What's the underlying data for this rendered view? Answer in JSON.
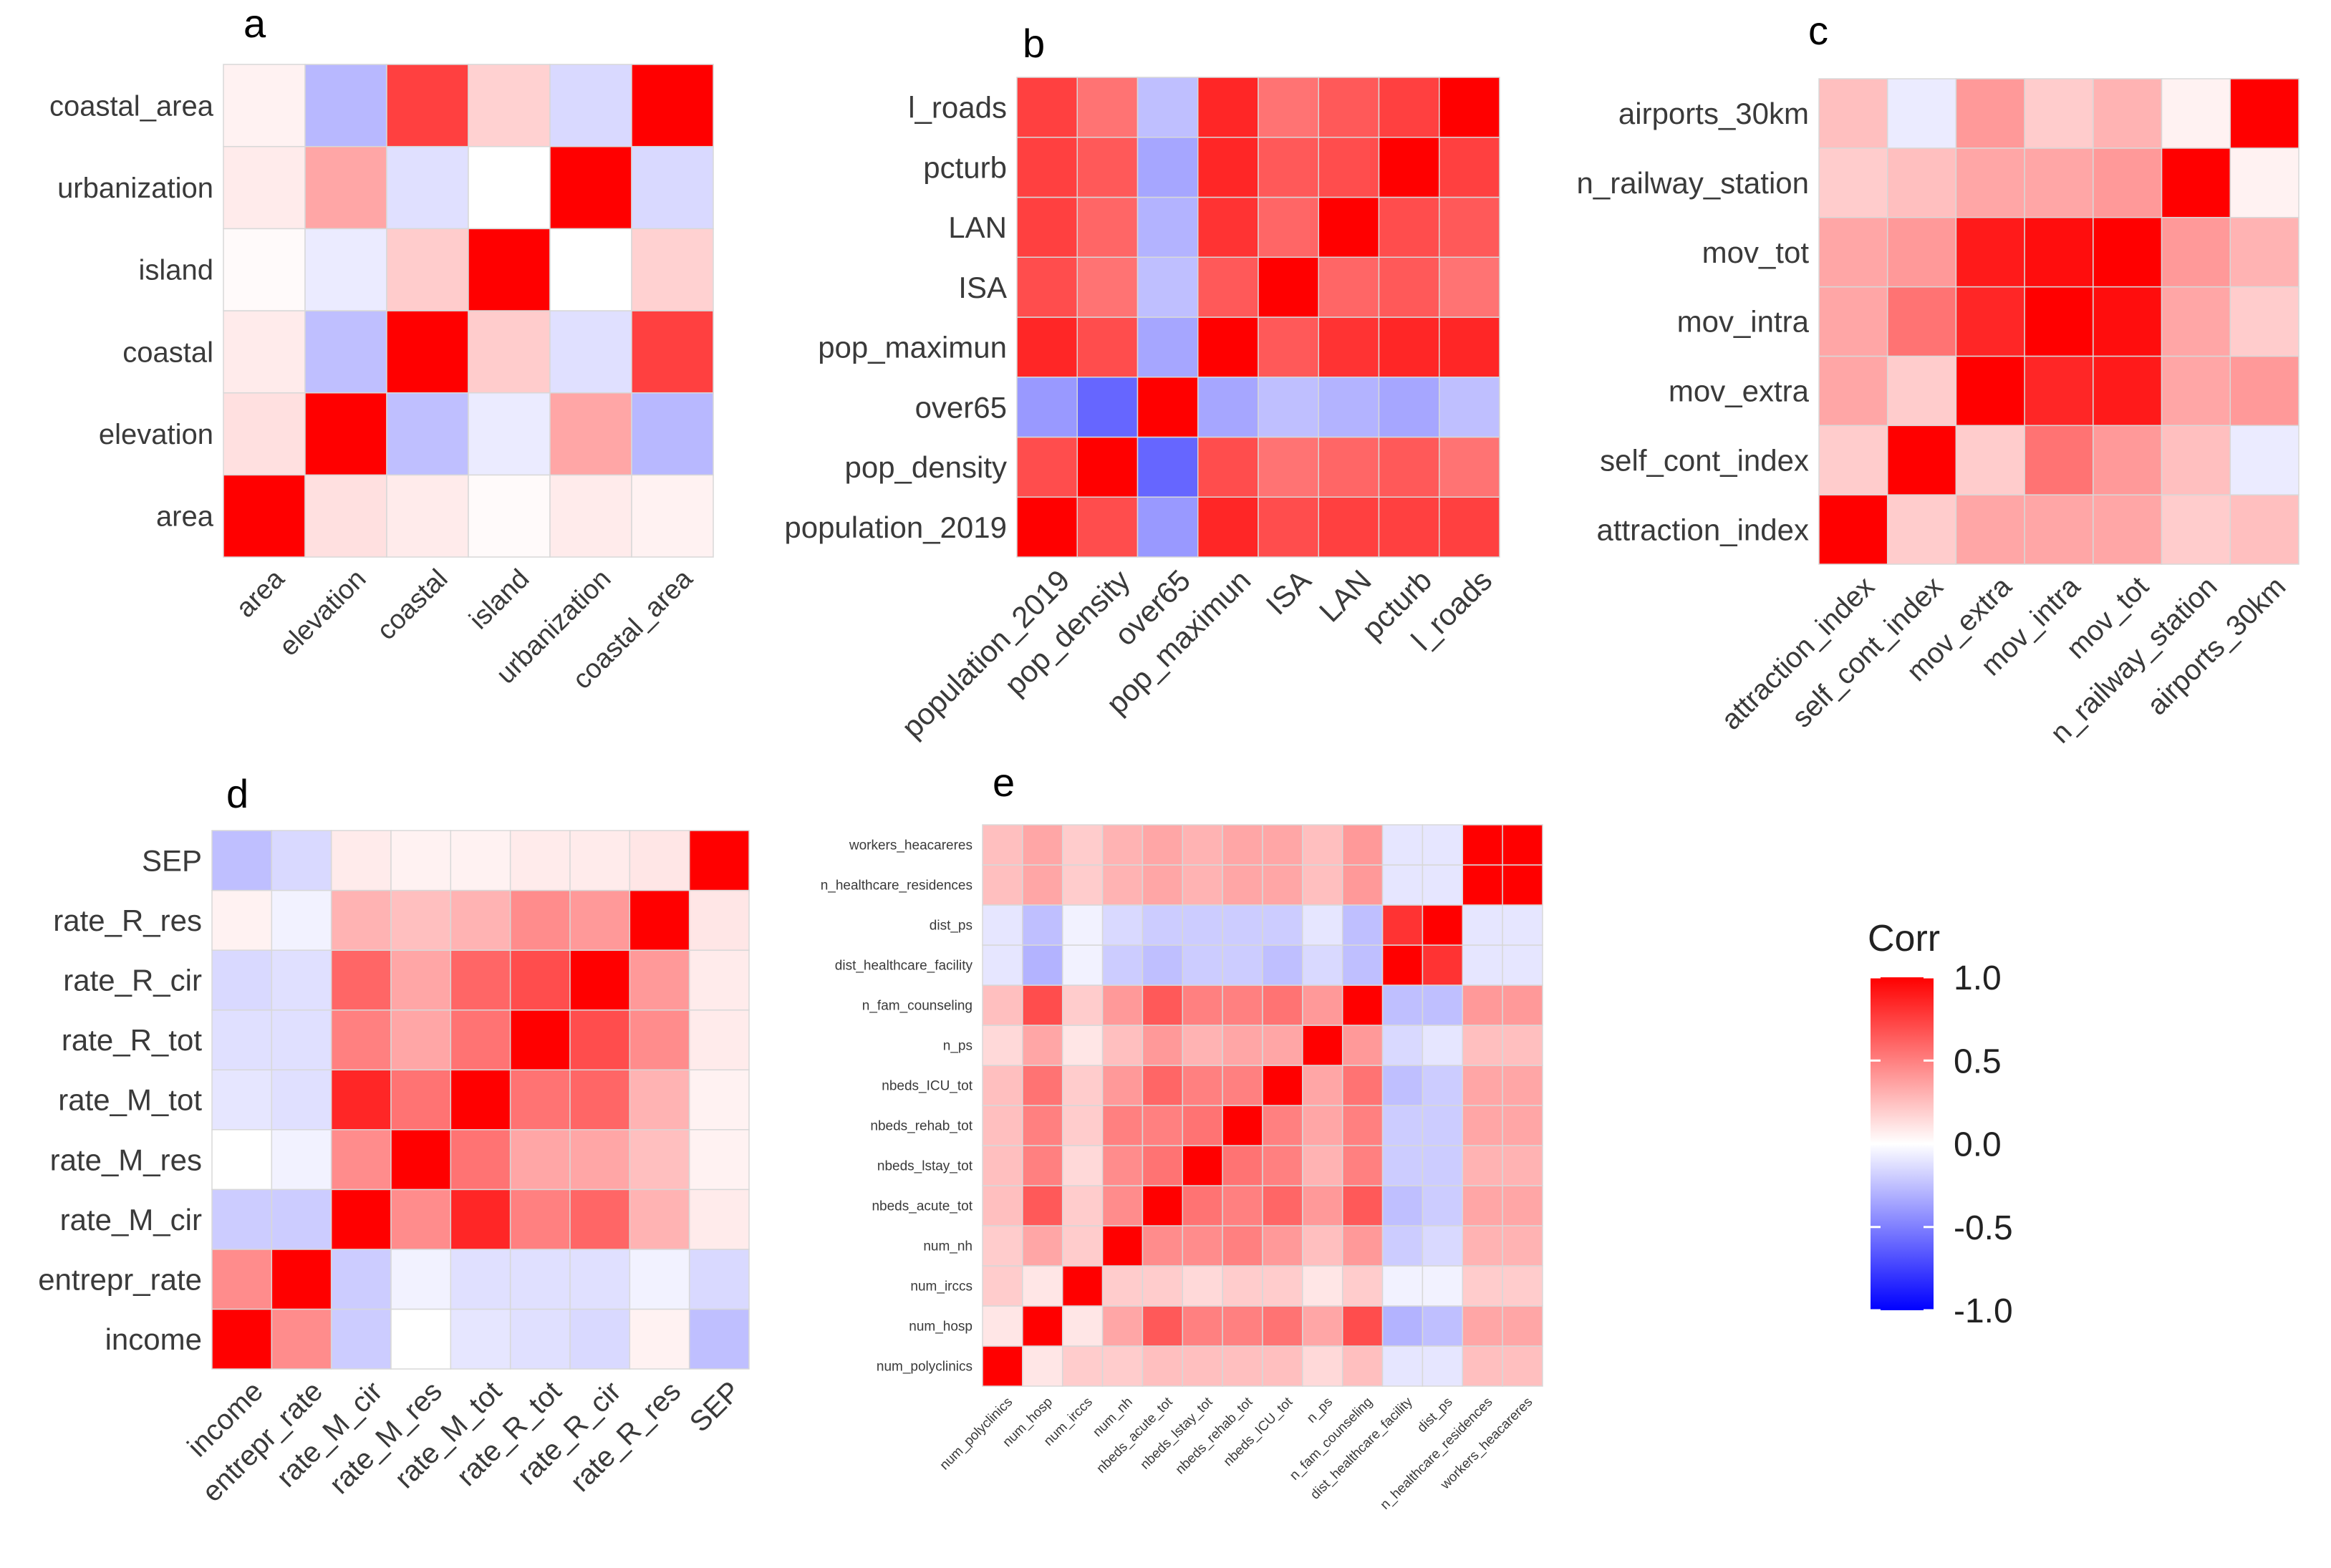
{
  "chart_data": [
    {
      "type": "heatmap",
      "panel_label": "a",
      "labels": [
        "area",
        "elevation",
        "coastal",
        "island",
        "urbanization",
        "coastal_area"
      ],
      "values": [
        [
          1.0,
          0.12,
          0.08,
          0.02,
          0.08,
          0.05
        ],
        [
          0.12,
          1.0,
          -0.25,
          -0.08,
          0.35,
          -0.28
        ],
        [
          0.08,
          -0.25,
          1.0,
          0.2,
          -0.12,
          0.75
        ],
        [
          0.02,
          -0.08,
          0.2,
          1.0,
          0.0,
          0.18
        ],
        [
          0.08,
          0.35,
          -0.12,
          0.0,
          1.0,
          -0.15
        ],
        [
          0.05,
          -0.28,
          0.75,
          0.18,
          -0.15,
          1.0
        ]
      ]
    },
    {
      "type": "heatmap",
      "panel_label": "b",
      "labels": [
        "population_2019",
        "pop_density",
        "over65",
        "pop_maximun",
        "ISA",
        "LAN",
        "pcturb",
        "l_roads"
      ],
      "values": [
        [
          1.0,
          0.7,
          -0.4,
          0.85,
          0.7,
          0.75,
          0.75,
          0.75
        ],
        [
          0.7,
          1.0,
          -0.6,
          0.7,
          0.55,
          0.6,
          0.65,
          0.55
        ],
        [
          -0.4,
          -0.6,
          1.0,
          -0.35,
          -0.25,
          -0.3,
          -0.35,
          -0.25
        ],
        [
          0.85,
          0.7,
          -0.35,
          1.0,
          0.65,
          0.8,
          0.85,
          0.85
        ],
        [
          0.7,
          0.55,
          -0.25,
          0.65,
          1.0,
          0.6,
          0.65,
          0.55
        ],
        [
          0.75,
          0.6,
          -0.3,
          0.8,
          0.6,
          1.0,
          0.7,
          0.65
        ],
        [
          0.75,
          0.65,
          -0.35,
          0.85,
          0.65,
          0.7,
          1.0,
          0.75
        ],
        [
          0.75,
          0.55,
          -0.25,
          0.85,
          0.55,
          0.65,
          0.75,
          1.0
        ]
      ]
    },
    {
      "type": "heatmap",
      "panel_label": "c",
      "labels": [
        "attraction_index",
        "self_cont_index",
        "mov_extra",
        "mov_intra",
        "mov_tot",
        "n_railway_station",
        "airports_30km"
      ],
      "values": [
        [
          1.0,
          0.2,
          0.35,
          0.35,
          0.35,
          0.2,
          0.25
        ],
        [
          0.2,
          1.0,
          0.2,
          0.55,
          0.4,
          0.25,
          -0.08
        ],
        [
          0.35,
          0.2,
          1.0,
          0.85,
          0.9,
          0.35,
          0.4
        ],
        [
          0.35,
          0.55,
          0.85,
          1.0,
          0.95,
          0.35,
          0.2
        ],
        [
          0.35,
          0.4,
          0.9,
          0.95,
          1.0,
          0.4,
          0.3
        ],
        [
          0.2,
          0.25,
          0.35,
          0.35,
          0.4,
          1.0,
          0.05
        ],
        [
          0.25,
          -0.08,
          0.4,
          0.2,
          0.3,
          0.05,
          1.0
        ]
      ]
    },
    {
      "type": "heatmap",
      "panel_label": "d",
      "labels": [
        "income",
        "entrepr_rate",
        "rate_M_cir",
        "rate_M_res",
        "rate_M_tot",
        "rate_R_tot",
        "rate_R_cir",
        "rate_R_res",
        "SEP"
      ],
      "values": [
        [
          1.0,
          0.45,
          -0.2,
          0.0,
          -0.1,
          -0.12,
          -0.15,
          0.05,
          -0.25
        ],
        [
          0.45,
          1.0,
          -0.2,
          -0.05,
          -0.12,
          -0.12,
          -0.12,
          -0.05,
          -0.15
        ],
        [
          -0.2,
          -0.2,
          1.0,
          0.45,
          0.85,
          0.5,
          0.6,
          0.3,
          0.08
        ],
        [
          0.0,
          -0.05,
          0.45,
          1.0,
          0.55,
          0.35,
          0.35,
          0.25,
          0.05
        ],
        [
          -0.1,
          -0.12,
          0.85,
          0.55,
          1.0,
          0.55,
          0.6,
          0.3,
          0.05
        ],
        [
          -0.12,
          -0.12,
          0.5,
          0.35,
          0.55,
          1.0,
          0.7,
          0.45,
          0.08
        ],
        [
          -0.15,
          -0.12,
          0.6,
          0.35,
          0.6,
          0.7,
          1.0,
          0.4,
          0.08
        ],
        [
          0.05,
          -0.05,
          0.3,
          0.25,
          0.3,
          0.45,
          0.4,
          1.0,
          0.1
        ],
        [
          -0.25,
          -0.15,
          0.08,
          0.05,
          0.05,
          0.08,
          0.08,
          0.1,
          1.0
        ]
      ]
    },
    {
      "type": "heatmap",
      "panel_label": "e",
      "labels": [
        "num_polyclinics",
        "num_hosp",
        "num_irccs",
        "num_nh",
        "nbeds_acute_tot",
        "nbeds_lstay_tot",
        "nbeds_rehab_tot",
        "nbeds_ICU_tot",
        "n_ps",
        "n_fam_counseling",
        "dist_healthcare_facility",
        "dist_ps",
        "n_healthcare_residences",
        "workers_heacareres"
      ],
      "values": [
        [
          1.0,
          0.1,
          0.2,
          0.2,
          0.25,
          0.25,
          0.25,
          0.25,
          0.15,
          0.25,
          -0.1,
          -0.1,
          0.25,
          0.25
        ],
        [
          0.1,
          1.0,
          0.1,
          0.35,
          0.65,
          0.5,
          0.5,
          0.55,
          0.35,
          0.7,
          -0.3,
          -0.25,
          0.35,
          0.35
        ],
        [
          0.2,
          0.1,
          1.0,
          0.2,
          0.2,
          0.15,
          0.2,
          0.2,
          0.1,
          0.2,
          -0.05,
          -0.05,
          0.2,
          0.2
        ],
        [
          0.2,
          0.35,
          0.2,
          1.0,
          0.45,
          0.45,
          0.5,
          0.4,
          0.25,
          0.4,
          -0.2,
          -0.15,
          0.3,
          0.3
        ],
        [
          0.25,
          0.65,
          0.2,
          0.45,
          1.0,
          0.55,
          0.5,
          0.6,
          0.4,
          0.65,
          -0.25,
          -0.2,
          0.35,
          0.35
        ],
        [
          0.25,
          0.5,
          0.15,
          0.45,
          0.55,
          1.0,
          0.55,
          0.5,
          0.3,
          0.5,
          -0.2,
          -0.2,
          0.3,
          0.3
        ],
        [
          0.25,
          0.5,
          0.2,
          0.5,
          0.5,
          0.55,
          1.0,
          0.5,
          0.35,
          0.5,
          -0.2,
          -0.2,
          0.35,
          0.35
        ],
        [
          0.25,
          0.55,
          0.2,
          0.4,
          0.6,
          0.5,
          0.5,
          1.0,
          0.35,
          0.55,
          -0.25,
          -0.2,
          0.35,
          0.35
        ],
        [
          0.15,
          0.35,
          0.1,
          0.25,
          0.4,
          0.3,
          0.35,
          0.35,
          1.0,
          0.4,
          -0.15,
          -0.1,
          0.25,
          0.25
        ],
        [
          0.25,
          0.7,
          0.2,
          0.4,
          0.65,
          0.5,
          0.5,
          0.55,
          0.4,
          1.0,
          -0.25,
          -0.25,
          0.4,
          0.4
        ],
        [
          -0.1,
          -0.3,
          -0.05,
          -0.2,
          -0.25,
          -0.2,
          -0.2,
          -0.25,
          -0.15,
          -0.25,
          1.0,
          0.8,
          -0.1,
          -0.1
        ],
        [
          -0.1,
          -0.25,
          -0.05,
          -0.15,
          -0.2,
          -0.2,
          -0.2,
          -0.2,
          -0.1,
          -0.25,
          0.8,
          1.0,
          -0.1,
          -0.1
        ],
        [
          0.25,
          0.35,
          0.2,
          0.3,
          0.35,
          0.3,
          0.35,
          0.35,
          0.25,
          0.4,
          -0.1,
          -0.1,
          1.0,
          1.0
        ],
        [
          0.25,
          0.35,
          0.2,
          0.3,
          0.35,
          0.3,
          0.35,
          0.35,
          0.25,
          0.4,
          -0.1,
          -0.1,
          1.0,
          1.0
        ]
      ]
    }
  ],
  "legend": {
    "title": "Corr",
    "ticks": [
      "1.0",
      "0.5",
      "0.0",
      "-0.5",
      "-1.0"
    ],
    "tick_values": [
      1.0,
      0.5,
      0.0,
      -0.5,
      -1.0
    ],
    "range": [
      -1.0,
      1.0
    ],
    "colors": {
      "low": "#0000ff",
      "mid": "#ffffff",
      "high": "#ff0000"
    }
  }
}
